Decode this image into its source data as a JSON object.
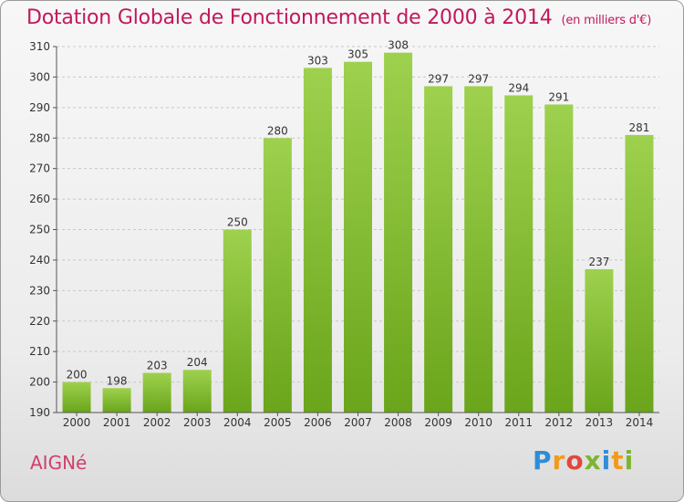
{
  "title": "Dotation Globale de Fonctionnement de 2000 à 2014",
  "subtitle": "(en milliers d'€)",
  "commune": "AIGNé",
  "brand": {
    "p": "P",
    "r": "r",
    "o": "o",
    "x": "x",
    "i": "i",
    "t": "t",
    "i2": "i"
  },
  "colors": {
    "bar_top": "#9ed14e",
    "bar_bottom": "#6aa51b",
    "title": "#c2185b"
  },
  "chart_data": {
    "type": "bar",
    "categories": [
      "2000",
      "2001",
      "2002",
      "2003",
      "2004",
      "2005",
      "2006",
      "2007",
      "2008",
      "2009",
      "2010",
      "2011",
      "2012",
      "2013",
      "2014"
    ],
    "values": [
      200,
      198,
      203,
      204,
      250,
      280,
      303,
      305,
      308,
      297,
      297,
      294,
      291,
      237,
      281
    ],
    "yticks": [
      190,
      200,
      210,
      220,
      230,
      240,
      250,
      260,
      270,
      280,
      290,
      300,
      310
    ],
    "ylim": [
      190,
      310
    ],
    "grid": true,
    "legend": "none"
  }
}
